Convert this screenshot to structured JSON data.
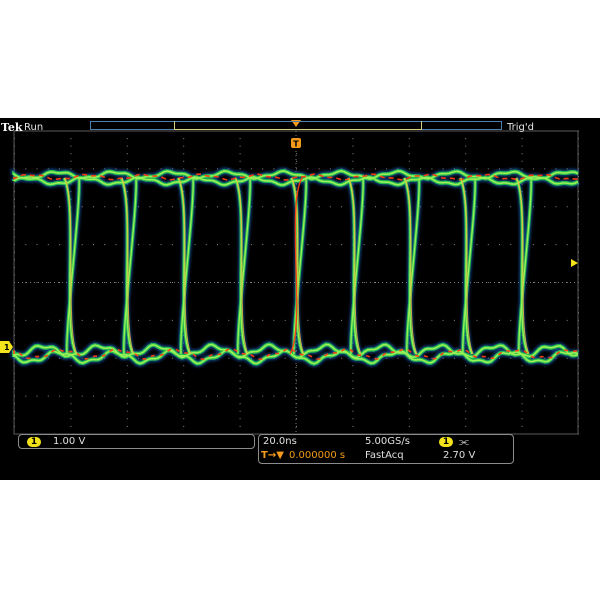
{
  "header": {
    "brand": "Tek",
    "run_state": "Run",
    "trigger_state": "Trig'd",
    "trigger_marker": "T"
  },
  "channel": {
    "number": "1",
    "scale": "1.00 V",
    "ground_marker": "1"
  },
  "horizontal": {
    "time_per_div": "20.0ns",
    "sample_rate": "5.00GS/s",
    "trigger_delay": "0.000000 s",
    "acq_mode": "FastAcq",
    "trigger_source": "1",
    "trigger_slope_icon": "rising-falling-edge-icon",
    "trigger_level": "2.70 V"
  },
  "display": {
    "mode": "eye-diagram persistence",
    "colors": {
      "background": "#000000",
      "grid": "#8a8a8a",
      "persistence_low": "#1f6fd6",
      "persistence_mid": "#29d04a",
      "persistence_high": "#ff3b10",
      "channel": "#f4e21a",
      "trigger": "#f59a1a"
    }
  }
}
